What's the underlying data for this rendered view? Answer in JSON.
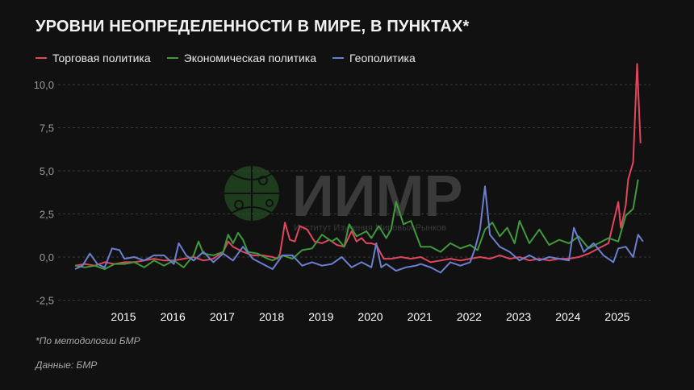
{
  "title": "УРОВНИ НЕОПРЕДЕЛЕННОСТИ В МИРЕ, В ПУНКТАХ*",
  "legend": [
    {
      "label": "Торговая политика",
      "color": "#e0465e"
    },
    {
      "label": "Экономическая политика",
      "color": "#3f9a3c"
    },
    {
      "label": "Геополитика",
      "color": "#6b7fd0"
    }
  ],
  "watermark": {
    "logo_text": "ИИМР",
    "subtitle": "Институт Изучения Мировых Рынков"
  },
  "footnote": "*По методологии БМР",
  "source": "Данные: БМР",
  "y_axis": {
    "ticks": [
      "10,0",
      "7,5",
      "5,0",
      "2,5",
      "0,0",
      "-2,5"
    ]
  },
  "x_axis": {
    "ticks": [
      "2015",
      "2016",
      "2017",
      "2018",
      "2019",
      "2020",
      "2021",
      "2022",
      "2023",
      "2024",
      "2025"
    ]
  },
  "chart_data": {
    "type": "line",
    "title": "Уровни неопределенности в мире, в пунктах*",
    "xlabel": "",
    "ylabel": "",
    "ylim": [
      -2.5,
      10.0
    ],
    "xlim": [
      2014.0,
      2025.5
    ],
    "grid": true,
    "legend_position": "top-left",
    "series": [
      {
        "name": "Торговая политика",
        "color": "#e0465e",
        "x": [
          2014.0,
          2014.2,
          2014.4,
          2014.6,
          2014.8,
          2015.0,
          2015.2,
          2015.4,
          2015.6,
          2015.8,
          2016.0,
          2016.2,
          2016.4,
          2016.6,
          2016.8,
          2017.0,
          2017.1,
          2017.2,
          2017.4,
          2017.6,
          2017.8,
          2018.0,
          2018.1,
          2018.15,
          2018.25,
          2018.35,
          2018.45,
          2018.55,
          2018.7,
          2018.85,
          2019.0,
          2019.15,
          2019.3,
          2019.45,
          2019.6,
          2019.7,
          2019.8,
          2019.9,
          2020.0,
          2020.1,
          2020.25,
          2020.4,
          2020.6,
          2020.8,
          2021.0,
          2021.2,
          2021.4,
          2021.6,
          2021.8,
          2022.0,
          2022.2,
          2022.4,
          2022.6,
          2022.8,
          2023.0,
          2023.2,
          2023.4,
          2023.6,
          2023.8,
          2024.0,
          2024.2,
          2024.4,
          2024.6,
          2024.8,
          2025.0,
          2025.05,
          2025.1,
          2025.15,
          2025.2,
          2025.3,
          2025.38,
          2025.45
        ],
        "values": [
          -0.5,
          -0.4,
          -0.5,
          -0.3,
          -0.4,
          -0.3,
          -0.3,
          -0.2,
          -0.1,
          -0.2,
          -0.2,
          -0.1,
          0.0,
          -0.2,
          -0.1,
          0.3,
          0.9,
          0.6,
          0.3,
          0.1,
          0.1,
          0.0,
          -0.1,
          0.2,
          2.0,
          1.0,
          0.9,
          1.8,
          1.6,
          0.9,
          0.8,
          1.0,
          0.7,
          0.6,
          1.5,
          0.9,
          1.1,
          0.8,
          0.8,
          0.7,
          -0.1,
          -0.1,
          0.0,
          -0.1,
          0.0,
          -0.3,
          -0.2,
          -0.1,
          -0.2,
          -0.1,
          0.0,
          -0.1,
          0.1,
          -0.1,
          0.0,
          -0.2,
          -0.1,
          -0.2,
          -0.1,
          -0.1,
          0.0,
          0.2,
          0.5,
          0.8,
          3.2,
          1.7,
          2.3,
          3.0,
          4.5,
          5.5,
          11.2,
          6.6
        ]
      },
      {
        "name": "Экономическая политика",
        "color": "#3f9a3c",
        "x": [
          2014.0,
          2014.2,
          2014.4,
          2014.6,
          2014.8,
          2015.0,
          2015.2,
          2015.4,
          2015.6,
          2015.8,
          2016.0,
          2016.2,
          2016.4,
          2016.5,
          2016.6,
          2016.8,
          2017.0,
          2017.1,
          2017.2,
          2017.3,
          2017.4,
          2017.5,
          2017.7,
          2017.9,
          2018.0,
          2018.2,
          2018.4,
          2018.6,
          2018.8,
          2019.0,
          2019.2,
          2019.3,
          2019.45,
          2019.55,
          2019.7,
          2019.9,
          2020.0,
          2020.15,
          2020.3,
          2020.4,
          2020.5,
          2020.65,
          2020.8,
          2021.0,
          2021.2,
          2021.4,
          2021.6,
          2021.8,
          2022.0,
          2022.15,
          2022.3,
          2022.45,
          2022.6,
          2022.75,
          2022.9,
          2023.0,
          2023.2,
          2023.4,
          2023.6,
          2023.8,
          2024.0,
          2024.2,
          2024.4,
          2024.6,
          2024.8,
          2025.0,
          2025.15,
          2025.3,
          2025.4
        ],
        "values": [
          -0.5,
          -0.6,
          -0.5,
          -0.7,
          -0.4,
          -0.4,
          -0.3,
          -0.6,
          -0.2,
          -0.5,
          -0.2,
          -0.6,
          0.1,
          0.9,
          0.2,
          0.1,
          0.3,
          1.3,
          0.8,
          1.4,
          1.0,
          0.3,
          0.2,
          -0.1,
          -0.2,
          0.1,
          -0.1,
          0.4,
          0.5,
          1.3,
          0.9,
          1.1,
          0.6,
          1.9,
          1.2,
          1.5,
          1.1,
          1.8,
          1.1,
          1.6,
          3.2,
          1.9,
          2.1,
          0.6,
          0.6,
          0.3,
          0.8,
          0.5,
          0.7,
          0.4,
          1.6,
          2.0,
          1.2,
          1.7,
          0.8,
          2.1,
          0.8,
          1.6,
          0.7,
          1.0,
          0.8,
          1.2,
          0.5,
          0.8,
          1.1,
          0.9,
          2.4,
          2.8,
          4.5
        ]
      },
      {
        "name": "Геополитика",
        "color": "#6b7fd0",
        "x": [
          2014.0,
          2014.15,
          2014.3,
          2014.45,
          2014.6,
          2014.75,
          2014.9,
          2015.0,
          2015.2,
          2015.4,
          2015.6,
          2015.8,
          2016.0,
          2016.1,
          2016.25,
          2016.4,
          2016.6,
          2016.8,
          2017.0,
          2017.2,
          2017.4,
          2017.6,
          2017.8,
          2018.0,
          2018.2,
          2018.4,
          2018.6,
          2018.8,
          2019.0,
          2019.2,
          2019.4,
          2019.6,
          2019.8,
          2020.0,
          2020.1,
          2020.2,
          2020.3,
          2020.5,
          2020.7,
          2020.9,
          2021.0,
          2021.2,
          2021.4,
          2021.6,
          2021.8,
          2022.0,
          2022.1,
          2022.2,
          2022.3,
          2022.4,
          2022.6,
          2022.8,
          2023.0,
          2023.2,
          2023.4,
          2023.6,
          2023.8,
          2024.0,
          2024.1,
          2024.3,
          2024.5,
          2024.7,
          2024.9,
          2025.0,
          2025.15,
          2025.3,
          2025.4,
          2025.5
        ],
        "values": [
          -0.7,
          -0.5,
          0.2,
          -0.4,
          -0.6,
          0.5,
          0.4,
          -0.1,
          0.0,
          -0.2,
          0.1,
          0.1,
          -0.4,
          0.8,
          0.1,
          -0.2,
          0.3,
          -0.3,
          0.2,
          -0.2,
          0.6,
          -0.1,
          -0.4,
          -0.7,
          0.1,
          0.1,
          -0.5,
          -0.3,
          -0.5,
          -0.4,
          0.0,
          -0.6,
          -0.3,
          -0.6,
          0.8,
          -0.6,
          -0.4,
          -0.8,
          -0.6,
          -0.5,
          -0.4,
          -0.6,
          -0.9,
          -0.3,
          -0.5,
          -0.3,
          0.5,
          1.6,
          4.1,
          1.3,
          0.6,
          0.3,
          -0.2,
          0.1,
          -0.2,
          0.0,
          -0.1,
          -0.2,
          1.7,
          0.3,
          0.8,
          0.1,
          -0.3,
          0.5,
          0.6,
          0.0,
          1.3,
          0.9
        ]
      }
    ]
  }
}
